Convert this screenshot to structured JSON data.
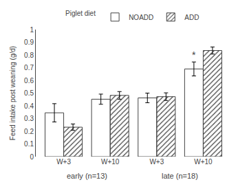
{
  "chart_data": {
    "type": "bar",
    "categories": [
      "W+3",
      "W+10",
      "W+3",
      "W+10"
    ],
    "group_labels": [
      "early (n=13)",
      "late (n=18)"
    ],
    "series": [
      {
        "name": "NOADD",
        "color": "#ffffff",
        "values": [
          0.345,
          0.452,
          0.462,
          0.69
        ],
        "errors": [
          0.072,
          0.04,
          0.038,
          0.055
        ]
      },
      {
        "name": "ADD",
        "color": "#cccccc",
        "values": [
          0.232,
          0.482,
          0.472,
          0.835
        ],
        "errors": [
          0.025,
          0.03,
          0.03,
          0.028
        ]
      }
    ],
    "ylabel": "Feed intake post weaning (g/d)",
    "ylim": [
      0,
      1.0
    ],
    "yticks": [
      0,
      0.1,
      0.2,
      0.3,
      0.4,
      0.5,
      0.6,
      0.7,
      0.8,
      0.9,
      1
    ],
    "legend": "top",
    "legend_title": "Piglet diet",
    "annotations": [
      {
        "text": "*",
        "series": "NOADD",
        "index": 3
      }
    ],
    "grid": false
  }
}
